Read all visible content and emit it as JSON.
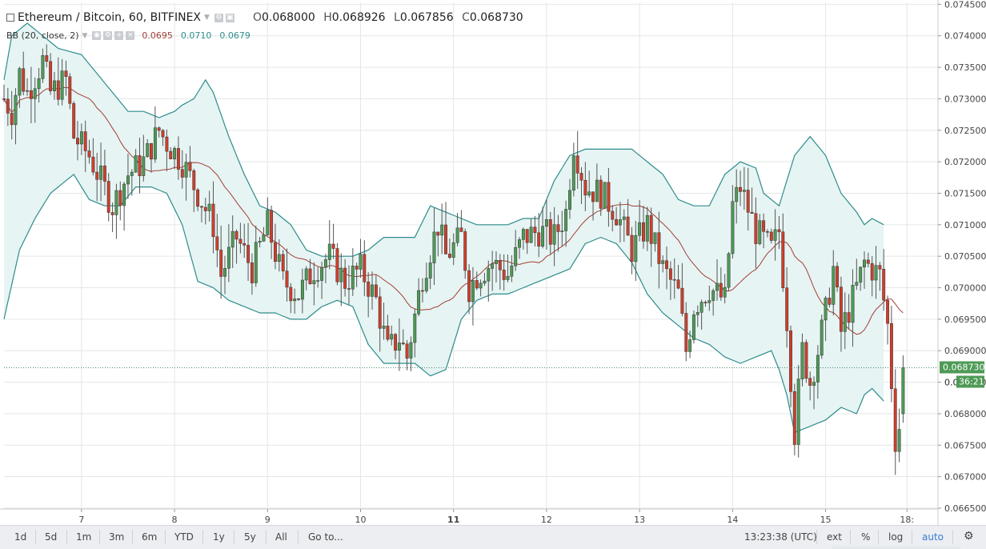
{
  "legend": {
    "symbol": "Ethereum / Bitcoin, 60, BITFINEX",
    "o_label": "O",
    "o": "0.068000",
    "h_label": "H",
    "h": "0.068926",
    "l_label": "L",
    "l": "0.067856",
    "c_label": "C",
    "c": "0.068730",
    "bb_label": "BB (20, close, 2)",
    "bb_basis": "0.0695",
    "bb_upper": "0.0710",
    "bb_lower": "0.0679"
  },
  "price_label": {
    "value": "0.068730",
    "partial": "0.0",
    "countdown": "36:21"
  },
  "bottom": {
    "timeframes": [
      "1d",
      "5d",
      "1m",
      "3m",
      "6m",
      "YTD",
      "1y",
      "5y",
      "All"
    ],
    "goto": "Go to...",
    "time": "13:23:38 (UTC)",
    "ext": "ext",
    "percent": "%",
    "log": "log",
    "auto": "auto"
  },
  "colors": {
    "up": "#4e9a56",
    "down": "#cf3e2c",
    "band": "#2e8c8c",
    "basis": "#a33f36",
    "fill": "#e6f4f3",
    "grid": "#e4e6e8",
    "priceline": "#4a8a70"
  },
  "chart_data": {
    "type": "candlestick",
    "title": "Ethereum / Bitcoin, 60, BITFINEX",
    "x_ticks": [
      {
        "label": "7",
        "hour": 124
      },
      {
        "label": "8",
        "hour": 148
      },
      {
        "label": "9",
        "hour": 172
      },
      {
        "label": "10",
        "hour": 196
      },
      {
        "label": "11",
        "hour": 220
      },
      {
        "label": "12",
        "hour": 244
      },
      {
        "label": "13",
        "hour": 268
      },
      {
        "label": "14",
        "hour": 292
      },
      {
        "label": "15",
        "hour": 316
      },
      {
        "label": "18:",
        "hour": 337
      }
    ],
    "y_ticks": [
      "0.074500",
      "0.074000",
      "0.073500",
      "0.073000",
      "0.072500",
      "0.072000",
      "0.071500",
      "0.071000",
      "0.070500",
      "0.070000",
      "0.069500",
      "0.069000",
      "0.068500",
      "0.068000",
      "0.067500",
      "0.067000",
      "0.066500"
    ],
    "ylim": [
      0.0665,
      0.07453
    ],
    "xlim": [
      104,
      345
    ],
    "last_price": 0.06873,
    "bb": {
      "length": 20,
      "source": "close",
      "mult": 2
    },
    "keypoints_close": [
      [
        104,
        0.073
      ],
      [
        106,
        0.0728
      ],
      [
        108,
        0.0734
      ],
      [
        110,
        0.0731
      ],
      [
        114,
        0.0736
      ],
      [
        116,
        0.0731
      ],
      [
        120,
        0.0733
      ],
      [
        122,
        0.0724
      ],
      [
        126,
        0.0721
      ],
      [
        132,
        0.0713
      ],
      [
        136,
        0.0718
      ],
      [
        140,
        0.072
      ],
      [
        144,
        0.0725
      ],
      [
        146,
        0.0723
      ],
      [
        150,
        0.072
      ],
      [
        154,
        0.0715
      ],
      [
        158,
        0.071
      ],
      [
        160,
        0.0702
      ],
      [
        164,
        0.0708
      ],
      [
        168,
        0.0703
      ],
      [
        172,
        0.071
      ],
      [
        176,
        0.0701
      ],
      [
        180,
        0.0699
      ],
      [
        184,
        0.0703
      ],
      [
        188,
        0.0705
      ],
      [
        192,
        0.0701
      ],
      [
        196,
        0.0703
      ],
      [
        200,
        0.0698
      ],
      [
        203,
        0.069
      ],
      [
        206,
        0.0692
      ],
      [
        208,
        0.0689
      ],
      [
        212,
        0.0702
      ],
      [
        216,
        0.071
      ],
      [
        218,
        0.0705
      ],
      [
        222,
        0.0708
      ],
      [
        224,
        0.07
      ],
      [
        226,
        0.0702
      ],
      [
        230,
        0.0704
      ],
      [
        234,
        0.0702
      ],
      [
        238,
        0.0708
      ],
      [
        242,
        0.0709
      ],
      [
        246,
        0.0708
      ],
      [
        249,
        0.0712
      ],
      [
        251,
        0.0723
      ],
      [
        254,
        0.0716
      ],
      [
        258,
        0.0715
      ],
      [
        262,
        0.0712
      ],
      [
        266,
        0.0706
      ],
      [
        270,
        0.071
      ],
      [
        274,
        0.0703
      ],
      [
        278,
        0.0699
      ],
      [
        280,
        0.069
      ],
      [
        282,
        0.0697
      ],
      [
        286,
        0.07
      ],
      [
        290,
        0.0698
      ],
      [
        292,
        0.0713
      ],
      [
        294,
        0.0716
      ],
      [
        298,
        0.0709
      ],
      [
        302,
        0.0706
      ],
      [
        304,
        0.0709
      ],
      [
        306,
        0.0695
      ],
      [
        308,
        0.0677
      ],
      [
        310,
        0.069
      ],
      [
        312,
        0.0685
      ],
      [
        314,
        0.069
      ],
      [
        316,
        0.0696
      ],
      [
        318,
        0.0703
      ],
      [
        320,
        0.0693
      ],
      [
        324,
        0.07
      ],
      [
        326,
        0.0704
      ],
      [
        330,
        0.0702
      ],
      [
        332,
        0.0694
      ],
      [
        334,
        0.0676
      ],
      [
        336,
        0.068
      ]
    ],
    "band_upper_keypoints": [
      [
        104,
        0.0733
      ],
      [
        106,
        0.074
      ],
      [
        110,
        0.0742
      ],
      [
        114,
        0.074
      ],
      [
        118,
        0.0738
      ],
      [
        124,
        0.0737
      ],
      [
        128,
        0.0734
      ],
      [
        132,
        0.0731
      ],
      [
        136,
        0.0728
      ],
      [
        140,
        0.0728
      ],
      [
        144,
        0.0727
      ],
      [
        148,
        0.0728
      ],
      [
        150,
        0.0729
      ],
      [
        153,
        0.073
      ],
      [
        156,
        0.0733
      ],
      [
        158,
        0.0731
      ],
      [
        162,
        0.0724
      ],
      [
        166,
        0.0718
      ],
      [
        170,
        0.0713
      ],
      [
        174,
        0.0712
      ],
      [
        178,
        0.071
      ],
      [
        182,
        0.0706
      ],
      [
        186,
        0.0705
      ],
      [
        190,
        0.0705
      ],
      [
        194,
        0.0705
      ],
      [
        198,
        0.0706
      ],
      [
        202,
        0.0708
      ],
      [
        206,
        0.0708
      ],
      [
        210,
        0.0708
      ],
      [
        214,
        0.0713
      ],
      [
        218,
        0.0712
      ],
      [
        222,
        0.0711
      ],
      [
        226,
        0.071
      ],
      [
        230,
        0.071
      ],
      [
        234,
        0.071
      ],
      [
        238,
        0.0711
      ],
      [
        242,
        0.0711
      ],
      [
        246,
        0.0717
      ],
      [
        250,
        0.0721
      ],
      [
        254,
        0.0722
      ],
      [
        258,
        0.0722
      ],
      [
        262,
        0.0722
      ],
      [
        266,
        0.0722
      ],
      [
        270,
        0.072
      ],
      [
        274,
        0.0718
      ],
      [
        278,
        0.0714
      ],
      [
        282,
        0.0713
      ],
      [
        286,
        0.0713
      ],
      [
        290,
        0.0718
      ],
      [
        294,
        0.072
      ],
      [
        298,
        0.0719
      ],
      [
        300,
        0.0715
      ],
      [
        304,
        0.0713
      ],
      [
        308,
        0.0721
      ],
      [
        312,
        0.0724
      ],
      [
        316,
        0.0721
      ],
      [
        320,
        0.0715
      ],
      [
        324,
        0.0712
      ],
      [
        326,
        0.071
      ],
      [
        328,
        0.0711
      ],
      [
        331,
        0.071
      ]
    ],
    "band_lower_keypoints": [
      [
        104,
        0.0695
      ],
      [
        108,
        0.0706
      ],
      [
        112,
        0.0711
      ],
      [
        116,
        0.0715
      ],
      [
        122,
        0.0718
      ],
      [
        126,
        0.0714
      ],
      [
        130,
        0.0713
      ],
      [
        134,
        0.0713
      ],
      [
        138,
        0.0716
      ],
      [
        142,
        0.0716
      ],
      [
        146,
        0.0715
      ],
      [
        150,
        0.071
      ],
      [
        154,
        0.0701
      ],
      [
        158,
        0.07
      ],
      [
        162,
        0.0698
      ],
      [
        166,
        0.0697
      ],
      [
        170,
        0.0696
      ],
      [
        174,
        0.0696
      ],
      [
        178,
        0.0695
      ],
      [
        182,
        0.0695
      ],
      [
        186,
        0.0697
      ],
      [
        190,
        0.0698
      ],
      [
        194,
        0.0697
      ],
      [
        198,
        0.0691
      ],
      [
        202,
        0.0688
      ],
      [
        206,
        0.0688
      ],
      [
        210,
        0.0688
      ],
      [
        214,
        0.0686
      ],
      [
        218,
        0.0687
      ],
      [
        222,
        0.0695
      ],
      [
        226,
        0.0698
      ],
      [
        230,
        0.0699
      ],
      [
        234,
        0.0699
      ],
      [
        238,
        0.07
      ],
      [
        242,
        0.0701
      ],
      [
        246,
        0.0702
      ],
      [
        250,
        0.0703
      ],
      [
        254,
        0.0707
      ],
      [
        258,
        0.0708
      ],
      [
        262,
        0.0707
      ],
      [
        266,
        0.0704
      ],
      [
        270,
        0.0699
      ],
      [
        274,
        0.0696
      ],
      [
        278,
        0.0694
      ],
      [
        282,
        0.0692
      ],
      [
        286,
        0.0691
      ],
      [
        290,
        0.0689
      ],
      [
        294,
        0.0688
      ],
      [
        298,
        0.0689
      ],
      [
        302,
        0.069
      ],
      [
        304,
        0.0687
      ],
      [
        306,
        0.0683
      ],
      [
        308,
        0.0677
      ],
      [
        312,
        0.0678
      ],
      [
        316,
        0.0679
      ],
      [
        320,
        0.0681
      ],
      [
        324,
        0.068
      ],
      [
        326,
        0.0683
      ],
      [
        328,
        0.0684
      ],
      [
        331,
        0.0682
      ]
    ]
  }
}
